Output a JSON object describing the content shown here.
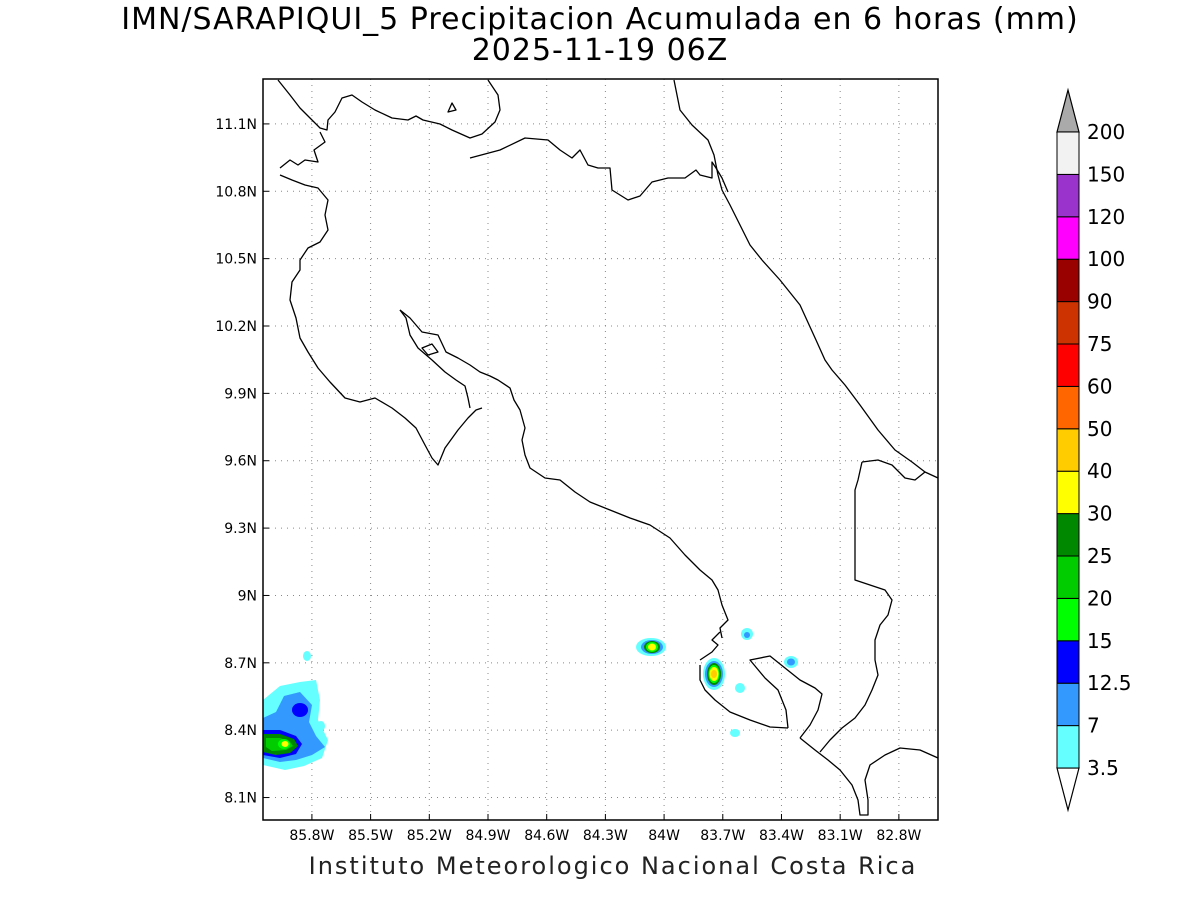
{
  "title": {
    "line1": "IMN/SARAPIQUI_5 Precipitacion Acumulada en 6 horas (mm)",
    "line2": "2025-11-19 06Z"
  },
  "footer": "Instituto Meteorologico Nacional Costa Rica",
  "map": {
    "region": "Costa Rica",
    "lon_range": [
      -86.05,
      -82.6
    ],
    "lat_range": [
      8.0,
      11.3
    ],
    "gridlines": "dotted",
    "lon_ticks": [
      {
        "value": -85.8,
        "label": "85.8W"
      },
      {
        "value": -85.5,
        "label": "85.5W"
      },
      {
        "value": -85.2,
        "label": "85.2W"
      },
      {
        "value": -84.9,
        "label": "84.9W"
      },
      {
        "value": -84.6,
        "label": "84.6W"
      },
      {
        "value": -84.3,
        "label": "84.3W"
      },
      {
        "value": -84.0,
        "label": "84W"
      },
      {
        "value": -83.7,
        "label": "83.7W"
      },
      {
        "value": -83.4,
        "label": "83.4W"
      },
      {
        "value": -83.1,
        "label": "83.1W"
      },
      {
        "value": -82.8,
        "label": "82.8W"
      }
    ],
    "lat_ticks": [
      {
        "value": 11.1,
        "label": "11.1N"
      },
      {
        "value": 10.8,
        "label": "10.8N"
      },
      {
        "value": 10.5,
        "label": "10.5N"
      },
      {
        "value": 10.2,
        "label": "10.2N"
      },
      {
        "value": 9.9,
        "label": "9.9N"
      },
      {
        "value": 9.6,
        "label": "9.6N"
      },
      {
        "value": 9.3,
        "label": "9.3N"
      },
      {
        "value": 9.0,
        "label": "9N"
      },
      {
        "value": 8.7,
        "label": "8.7N"
      },
      {
        "value": 8.4,
        "label": "8.4N"
      },
      {
        "value": 8.1,
        "label": "8.1N"
      }
    ]
  },
  "colorbar": {
    "labels": [
      "3.5",
      "7",
      "12.5",
      "15",
      "20",
      "25",
      "30",
      "40",
      "50",
      "60",
      "75",
      "90",
      "100",
      "120",
      "150",
      "200"
    ],
    "colors": [
      "#66ffff",
      "#3399ff",
      "#0000ff",
      "#00ff00",
      "#00cc00",
      "#008800",
      "#ffff00",
      "#ffcc00",
      "#ff6600",
      "#ff0000",
      "#cc3300",
      "#990000",
      "#ff00ff",
      "#9933cc",
      "#f2f2f2"
    ],
    "below_color": "#ffffff",
    "above_color": "#aaaaaa"
  },
  "precip_cells": [
    {
      "name": "cell-west-coast",
      "lon": -85.85,
      "lat": 8.35,
      "max_mm": "25-30"
    },
    {
      "name": "cell-pacific-86",
      "lon": -85.78,
      "lat": 8.48,
      "max_mm": "12.5-15"
    },
    {
      "name": "cell-84w",
      "lon": -84.0,
      "lat": 8.77,
      "max_mm": "30-40"
    },
    {
      "name": "cell-83-67w",
      "lon": -83.67,
      "lat": 8.65,
      "max_mm": "40-50"
    },
    {
      "name": "cell-83-25w",
      "lon": -83.25,
      "lat": 8.7,
      "max_mm": "7-12.5"
    },
    {
      "name": "cell-83-5w",
      "lon": -83.5,
      "lat": 8.83,
      "max_mm": "7-12.5"
    }
  ]
}
